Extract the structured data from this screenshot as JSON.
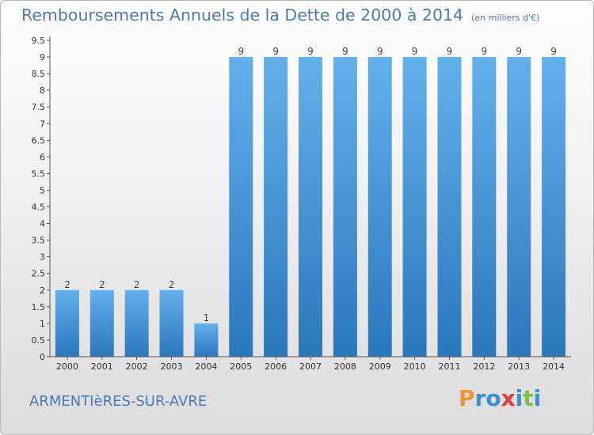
{
  "title": "Remboursements Annuels de la Dette de 2000 à 2014",
  "unit": "(en milliers d'€)",
  "commune": "ARMENTIèRES-SUR-AVRE",
  "logo": {
    "text": "Proxiti",
    "colors": [
      "#f0962e",
      "#3a8fd6",
      "#3a8fd6",
      "#e23b3b",
      "#3a8fd6",
      "#7cc242",
      "#3a8fd6"
    ]
  },
  "chart_data": {
    "type": "bar",
    "categories": [
      "2000",
      "2001",
      "2002",
      "2003",
      "2004",
      "2005",
      "2006",
      "2007",
      "2008",
      "2009",
      "2010",
      "2011",
      "2012",
      "2013",
      "2014"
    ],
    "values": [
      2,
      2,
      2,
      2,
      1,
      9,
      9,
      9,
      9,
      9,
      9,
      9,
      9,
      9,
      9
    ],
    "ylim": [
      0,
      9.5
    ],
    "yticks": [
      "0",
      "0.5",
      "1",
      "1.5",
      "2",
      "2.5",
      "3",
      "3.5",
      "4",
      "4.5",
      "5",
      "5.5",
      "6",
      "6.5",
      "7",
      "7.5",
      "8",
      "8.5",
      "9",
      "9.5"
    ],
    "grid": false,
    "colors": {
      "bar_light": "#62b0ec",
      "bar_dark": "#2a78bc",
      "axis": "#555555"
    }
  }
}
